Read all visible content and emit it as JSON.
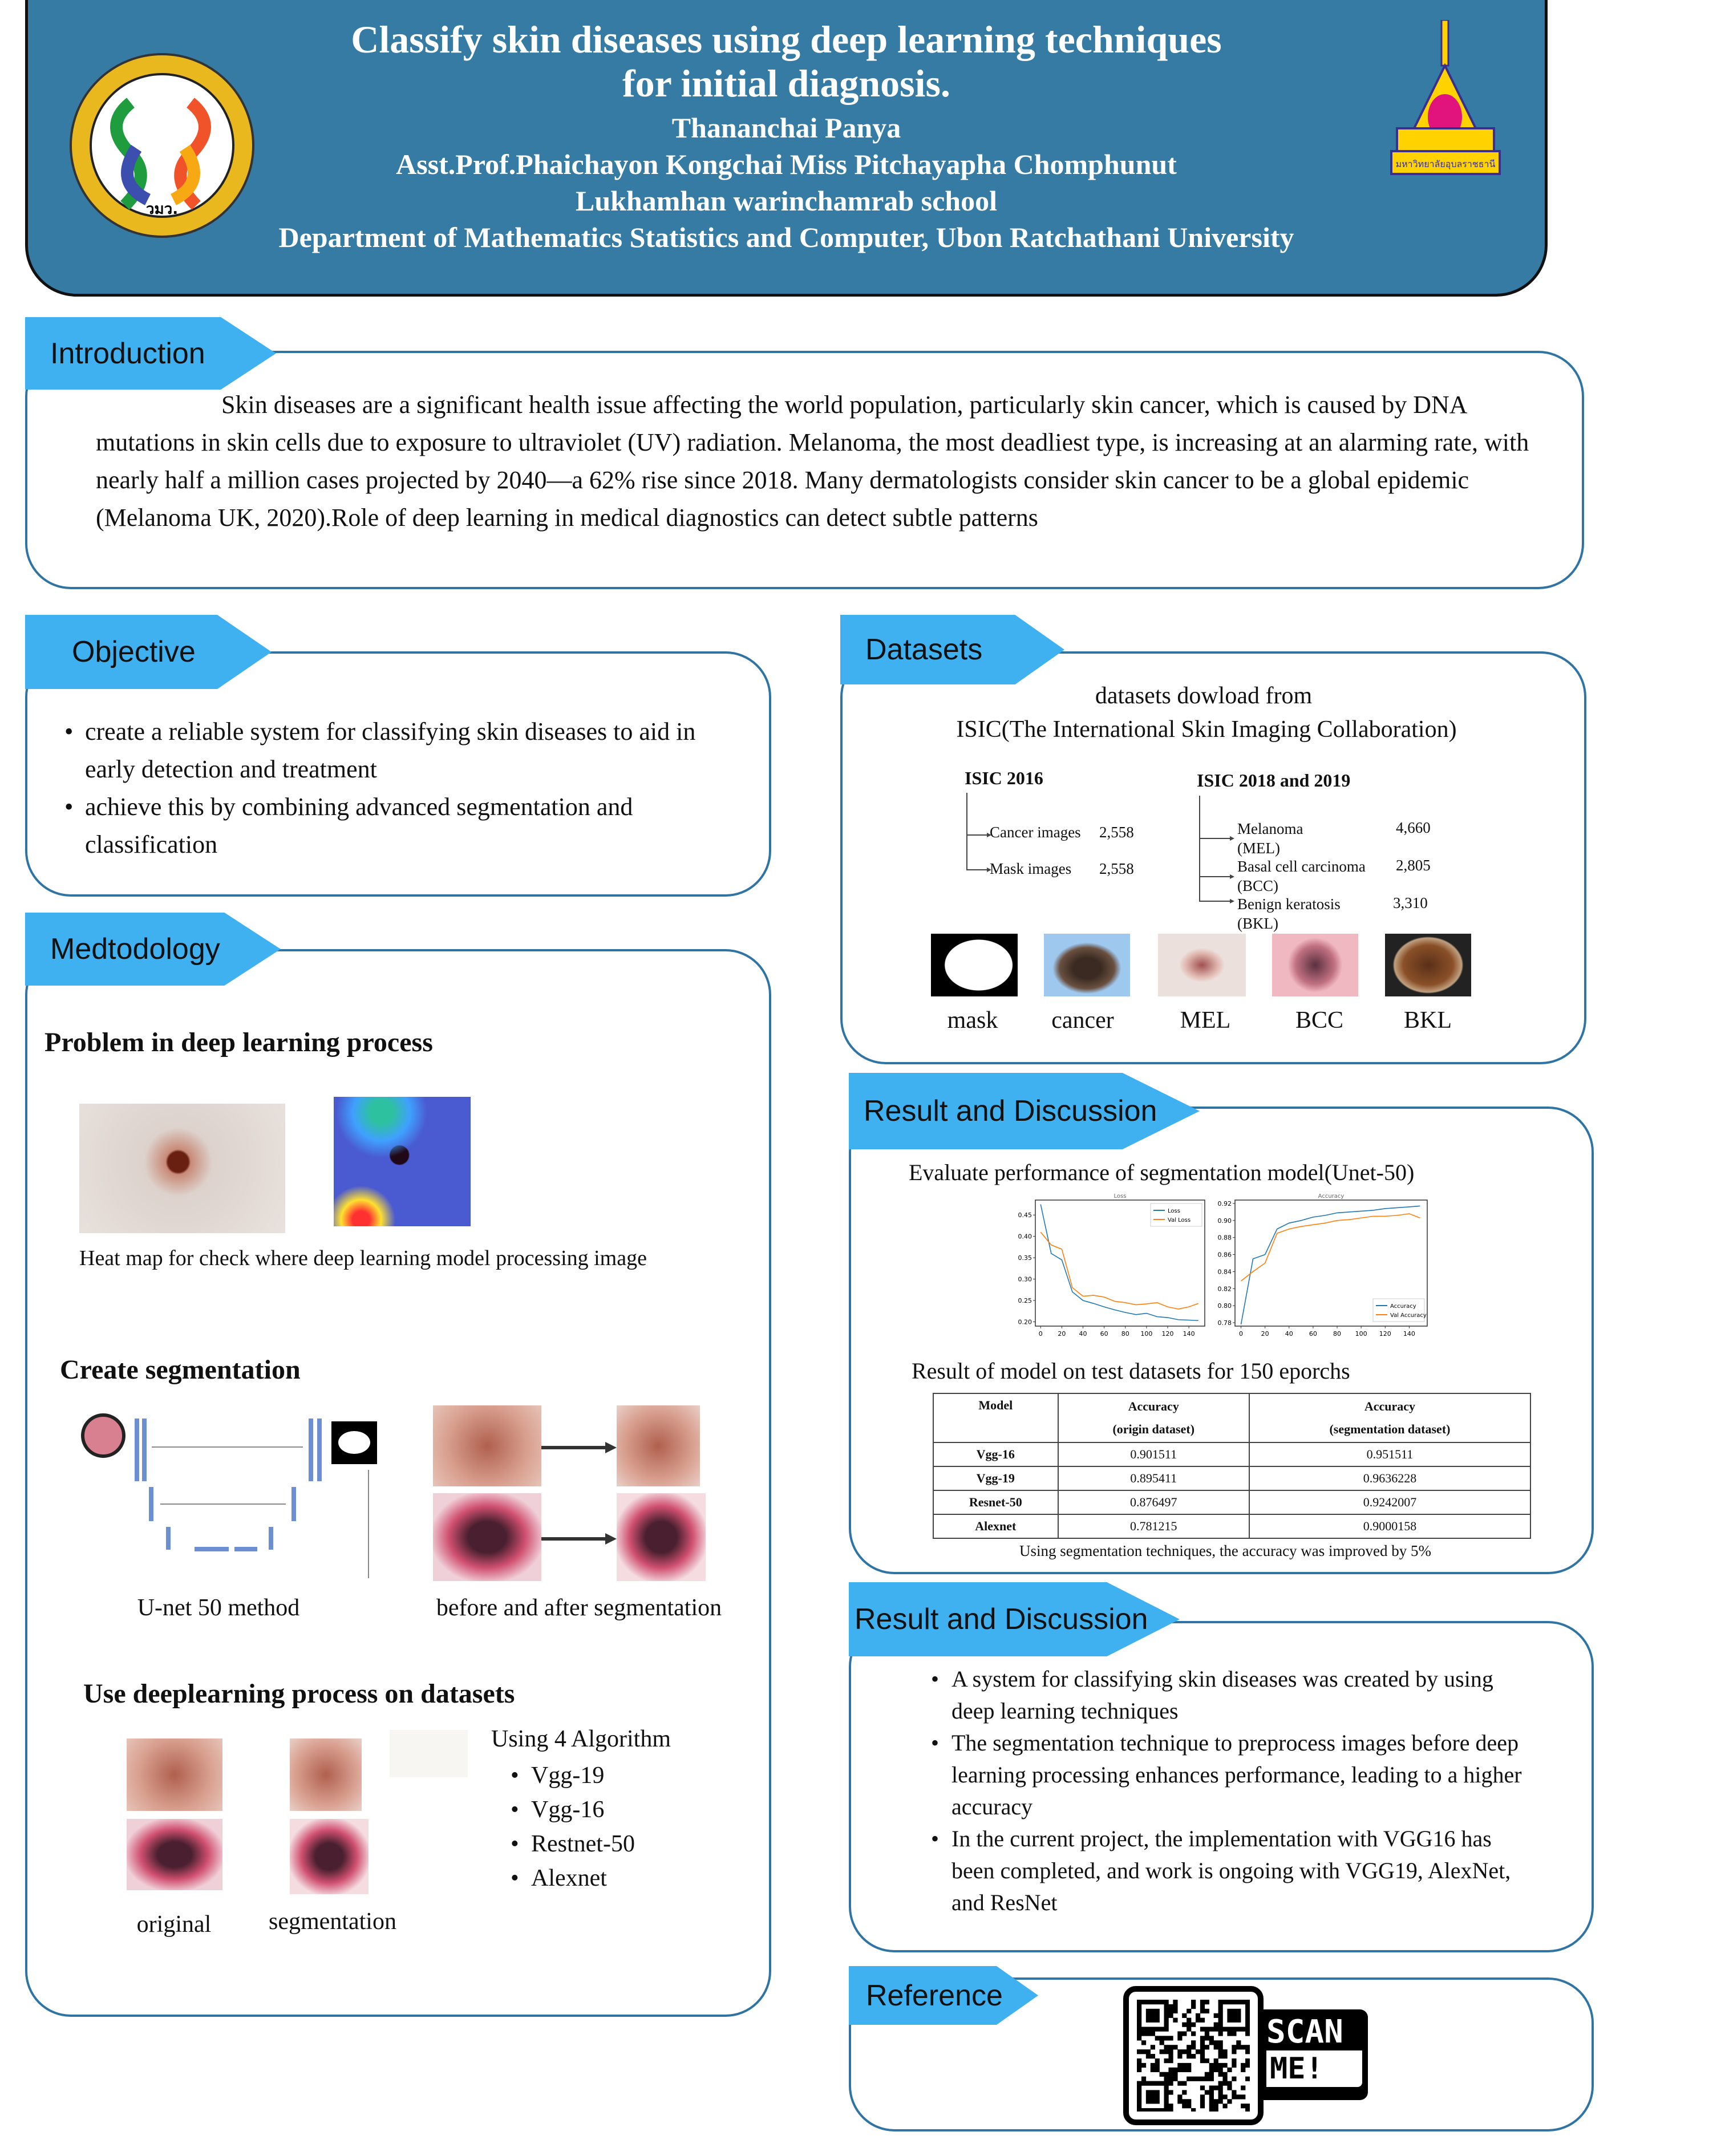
{
  "header": {
    "title1": "Classify skin diseases using deep learning techniques",
    "title2": "for initial diagnosis.",
    "author": "Thananchai Panya",
    "advisors": "Asst.Prof.Phaichayon Kongchai Miss Pitchayapha Chomphunut",
    "school": "Lukhamhan warinchamrab school",
    "department": "Department of Mathematics Statistics and Computer, Ubon Ratchathani University",
    "left_logo_text": "วมว.",
    "right_logo_text": "มหาวิทยาลัยอุบลราชธานี"
  },
  "intro": {
    "tab": "Introduction",
    "text": "Skin diseases are a significant health issue affecting the world population, particularly skin cancer, which is caused by DNA mutations in skin cells due to exposure to ultraviolet (UV) radiation. Melanoma, the most deadliest type, is increasing at an alarming rate, with nearly half a million cases projected by 2040—a 62% rise since 2018. Many dermatologists consider skin cancer to be a global epidemic (Melanoma UK, 2020).Role of deep learning in medical diagnostics can detect subtle patterns"
  },
  "objective": {
    "tab": "Objective",
    "items": [
      "create a reliable system for classifying skin diseases to aid in early detection and treatment",
      "achieve this by combining advanced segmentation and classification"
    ]
  },
  "method": {
    "tab": "Medtodology",
    "problem_heading": "Problem in deep learning process",
    "heatmap_caption": "Heat map for check where deep learning model processing image",
    "seg_heading": "Create segmentation",
    "unet_caption": "U-net 50 method",
    "before_after_caption": "before and after segmentation",
    "use_heading": "Use deeplearning process on datasets",
    "original_caption": "original",
    "segmentation_caption": "segmentation",
    "algo_heading": "Using 4 Algorithm",
    "algos": [
      "Vgg-19",
      "Vgg-16",
      "Restnet-50",
      "Alexnet"
    ]
  },
  "datasets": {
    "tab": "Datasets",
    "line1": "datasets dowload from",
    "line2": "ISIC(The International Skin Imaging Collaboration)",
    "isic2016": {
      "title": "ISIC 2016",
      "rows": [
        {
          "label": "Cancer images",
          "value": "2,558"
        },
        {
          "label": "Mask images",
          "value": "2,558"
        }
      ]
    },
    "isic2018": {
      "title": "ISIC 2018 and 2019",
      "rows": [
        {
          "label": "Melanoma",
          "abbr": "(MEL)",
          "value": "4,660"
        },
        {
          "label": "Basal cell carcinoma",
          "abbr": "(BCC)",
          "value": "2,805"
        },
        {
          "label": "Benign keratosis",
          "abbr": "(BKL)",
          "value": "3,310"
        }
      ]
    },
    "thumbs": [
      "mask",
      "cancer",
      "MEL",
      "BCC",
      "BKL"
    ]
  },
  "result1": {
    "tab": "Result and Discussion",
    "eval_title": "Evaluate performance of segmentation model(Unet-50)",
    "table_title": "Result of model on test datasets for 150 eporchs",
    "table": {
      "headers": [
        "Model",
        "Accuracy",
        "(origin dataset)",
        "Accuracy",
        "(segmentation dataset)"
      ],
      "rows": [
        [
          "Vgg-16",
          "0.901511",
          "0.951511"
        ],
        [
          "Vgg-19",
          "0.895411",
          "0.9636228"
        ],
        [
          "Resnet-50",
          "0.876497",
          "0.9242007"
        ],
        [
          "Alexnet",
          "0.781215",
          "0.9000158"
        ]
      ]
    },
    "caption": "Using segmentation techniques, the accuracy was improved by 5%"
  },
  "result2": {
    "tab": "Result and Discussion",
    "items": [
      "A system for classifying skin diseases was created by using deep learning techniques",
      "The segmentation technique to preprocess images before deep learning processing enhances performance, leading to a higher accuracy",
      "In the current project, the implementation with VGG16 has been completed, and work is ongoing with VGG19, AlexNet, and ResNet"
    ]
  },
  "reference": {
    "tab": "Reference",
    "scan1": "SCAN",
    "scan2": "ME!"
  },
  "colors": {
    "header": "#357ba3",
    "tab": "#3fb0f0",
    "border": "#2f74a3",
    "train": "#1f77b4",
    "val": "#ff7f0e"
  },
  "chart_data": [
    {
      "type": "line",
      "title": "Loss",
      "x": [
        0,
        10,
        20,
        30,
        40,
        50,
        60,
        70,
        80,
        90,
        100,
        110,
        120,
        130,
        140,
        149
      ],
      "series": [
        {
          "name": "Loss",
          "values": [
            0.475,
            0.36,
            0.345,
            0.27,
            0.25,
            0.243,
            0.235,
            0.228,
            0.222,
            0.217,
            0.22,
            0.212,
            0.21,
            0.205,
            0.204,
            0.203
          ]
        },
        {
          "name": "Val Loss",
          "values": [
            0.41,
            0.38,
            0.37,
            0.28,
            0.26,
            0.262,
            0.258,
            0.248,
            0.245,
            0.24,
            0.242,
            0.245,
            0.235,
            0.23,
            0.235,
            0.243
          ]
        }
      ],
      "xticks": [
        0,
        20,
        40,
        60,
        80,
        100,
        120,
        140
      ],
      "yticks": [
        0.2,
        0.25,
        0.3,
        0.35,
        0.4,
        0.45
      ],
      "xlim": [
        -5,
        155
      ],
      "ylim": [
        0.19,
        0.485
      ],
      "legend": "top-right"
    },
    {
      "type": "line",
      "title": "Accuracy",
      "x": [
        0,
        10,
        20,
        30,
        40,
        50,
        60,
        70,
        80,
        90,
        100,
        110,
        120,
        130,
        140,
        149
      ],
      "series": [
        {
          "name": "Accuracy",
          "values": [
            0.778,
            0.855,
            0.86,
            0.89,
            0.897,
            0.9,
            0.904,
            0.906,
            0.909,
            0.91,
            0.911,
            0.912,
            0.914,
            0.915,
            0.916,
            0.917
          ]
        },
        {
          "name": "Val Accuracy",
          "values": [
            0.829,
            0.84,
            0.85,
            0.885,
            0.89,
            0.893,
            0.895,
            0.897,
            0.9,
            0.901,
            0.903,
            0.905,
            0.905,
            0.906,
            0.908,
            0.903
          ]
        }
      ],
      "xticks": [
        0,
        20,
        40,
        60,
        80,
        100,
        120,
        140
      ],
      "yticks": [
        0.78,
        0.8,
        0.82,
        0.84,
        0.86,
        0.88,
        0.9,
        0.92
      ],
      "xlim": [
        -5,
        155
      ],
      "ylim": [
        0.776,
        0.924
      ],
      "legend": "bottom-right"
    }
  ]
}
